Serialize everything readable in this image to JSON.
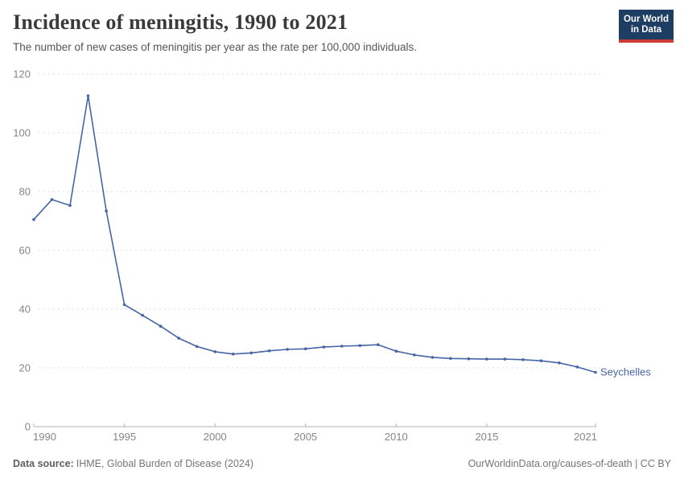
{
  "header": {
    "title": "Incidence of meningitis, 1990 to 2021",
    "subtitle": "The number of new cases of meningitis per year as the rate per 100,000 individuals.",
    "logo": {
      "line1": "Our World",
      "line2": "in Data"
    }
  },
  "chart_data": {
    "type": "line",
    "title": "Incidence of meningitis, 1990 to 2021",
    "xlabel": "",
    "ylabel": "",
    "xlim": [
      1990,
      2021
    ],
    "ylim": [
      0,
      120
    ],
    "x_ticks": [
      1990,
      1995,
      2000,
      2005,
      2010,
      2015,
      2021
    ],
    "y_ticks": [
      0,
      20,
      40,
      60,
      80,
      100,
      120
    ],
    "grid": "horizontal-dashed",
    "legend_position": "line-end-label",
    "series": [
      {
        "name": "Seychelles",
        "color": "#4665a4",
        "x": [
          1990,
          1991,
          1992,
          1993,
          1994,
          1995,
          1996,
          1997,
          1998,
          1999,
          2000,
          2001,
          2002,
          2003,
          2004,
          2005,
          2006,
          2007,
          2008,
          2009,
          2010,
          2011,
          2012,
          2013,
          2014,
          2015,
          2016,
          2017,
          2018,
          2019,
          2020,
          2021
        ],
        "values": [
          70.5,
          77.3,
          75.3,
          112.6,
          73.4,
          41.5,
          37.9,
          34.2,
          30.1,
          27.3,
          25.5,
          24.7,
          25.1,
          25.8,
          26.3,
          26.5,
          27.1,
          27.4,
          27.6,
          27.9,
          25.7,
          24.4,
          23.6,
          23.2,
          23.1,
          23.0,
          23.0,
          22.8,
          22.4,
          21.7,
          20.3,
          18.5
        ]
      }
    ]
  },
  "footer": {
    "source_label": "Data source:",
    "source_text": "IHME, Global Burden of Disease (2024)",
    "credit": "OurWorldinData.org/causes-of-death | CC BY"
  },
  "colors": {
    "series_blue": "#4665a4",
    "logo_navy": "#1d3d63",
    "logo_red": "#cc3b34",
    "gridline": "#dddddd",
    "axis": "#b3b3b3",
    "tick_label": "#868686",
    "title_text": "#3a3a3a",
    "subtitle_text": "#53575c",
    "footer_text": "#757575"
  }
}
